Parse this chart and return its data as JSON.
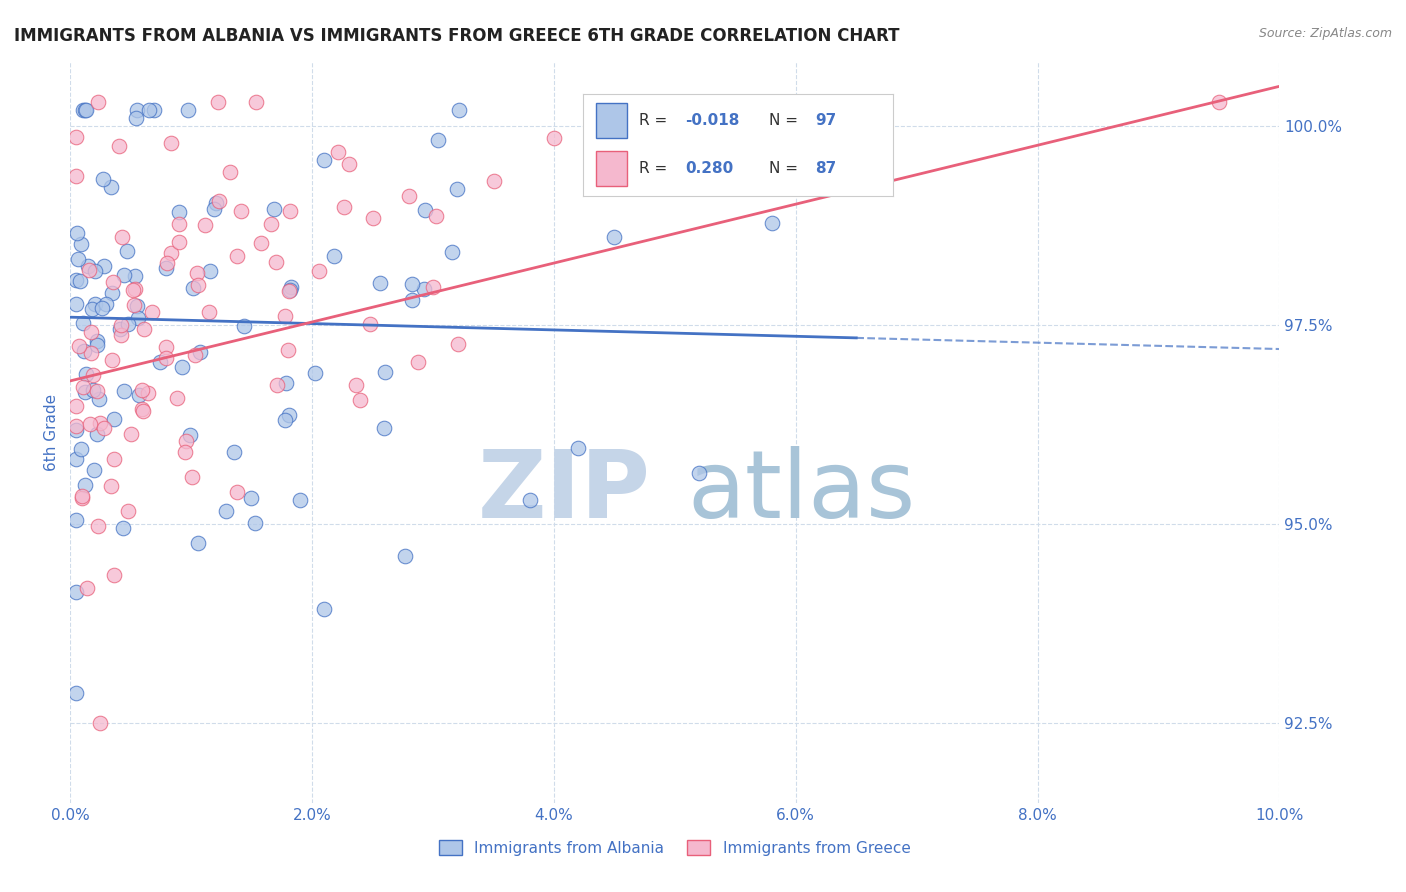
{
  "title": "IMMIGRANTS FROM ALBANIA VS IMMIGRANTS FROM GREECE 6TH GRADE CORRELATION CHART",
  "source": "Source: ZipAtlas.com",
  "xlabel_albania": "Immigrants from Albania",
  "xlabel_greece": "Immigrants from Greece",
  "ylabel": "6th Grade",
  "xlim": [
    0.0,
    10.0
  ],
  "ylim": [
    91.5,
    100.8
  ],
  "yticks": [
    92.5,
    95.0,
    97.5,
    100.0
  ],
  "xticks": [
    0.0,
    2.0,
    4.0,
    6.0,
    8.0,
    10.0
  ],
  "xtick_labels": [
    "0.0%",
    "2.0%",
    "4.0%",
    "6.0%",
    "8.0%",
    "10.0%"
  ],
  "ytick_labels": [
    "92.5%",
    "95.0%",
    "97.5%",
    "100.0%"
  ],
  "albania_color": "#aec6e8",
  "greece_color": "#f5b8ce",
  "albania_line_color": "#4472c4",
  "greece_line_color": "#e8607a",
  "albania_R": -0.018,
  "albania_N": 97,
  "greece_R": 0.28,
  "greece_N": 87,
  "albania_trend_y0": 97.6,
  "albania_trend_y1": 97.2,
  "greece_trend_y0": 96.8,
  "greece_trend_y1": 100.5,
  "watermark_zip_color": "#c5d5e8",
  "watermark_atlas_color": "#a8c4d8",
  "title_color": "#222222",
  "tick_color": "#4472c4",
  "grid_color": "#d0dcea",
  "legend_border_color": "#cccccc",
  "source_color": "#888888"
}
